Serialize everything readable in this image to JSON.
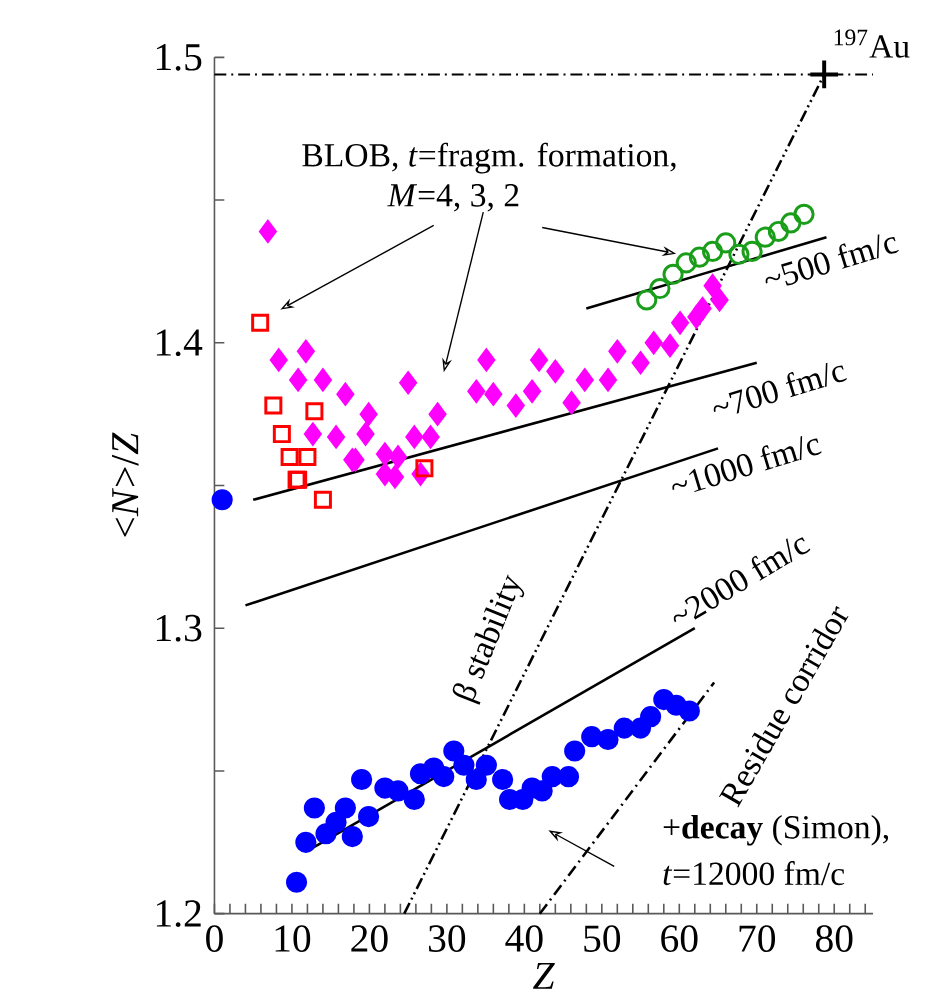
{
  "chart_data": {
    "type": "scatter",
    "xlabel": "*Z*",
    "ylabel": "<*N*>/*Z*",
    "xlim": [
      0,
      85
    ],
    "ylim": [
      1.2,
      1.5
    ],
    "xticks": [
      0,
      {
        "value": 2,
        "label": null
      },
      {
        "value": 4,
        "label": null
      },
      {
        "value": 6,
        "label": null
      },
      {
        "value": 8,
        "label": null
      },
      10,
      {
        "value": 12,
        "label": null
      },
      {
        "value": 14,
        "label": null
      },
      {
        "value": 16,
        "label": null
      },
      {
        "value": 18,
        "label": null
      },
      20,
      {
        "value": 22,
        "label": null
      },
      {
        "value": 24,
        "label": null
      },
      {
        "value": 26,
        "label": null
      },
      {
        "value": 28,
        "label": null
      },
      30,
      {
        "value": 32,
        "label": null
      },
      {
        "value": 34,
        "label": null
      },
      {
        "value": 36,
        "label": null
      },
      {
        "value": 38,
        "label": null
      },
      40,
      {
        "value": 42,
        "label": null
      },
      {
        "value": 44,
        "label": null
      },
      {
        "value": 46,
        "label": null
      },
      {
        "value": 48,
        "label": null
      },
      50,
      {
        "value": 52,
        "label": null
      },
      {
        "value": 54,
        "label": null
      },
      {
        "value": 56,
        "label": null
      },
      {
        "value": 58,
        "label": null
      },
      60,
      {
        "value": 62,
        "label": null
      },
      {
        "value": 64,
        "label": null
      },
      {
        "value": 66,
        "label": null
      },
      {
        "value": 68,
        "label": null
      },
      70,
      {
        "value": 72,
        "label": null
      },
      {
        "value": 74,
        "label": null
      },
      {
        "value": 76,
        "label": null
      },
      {
        "value": 78,
        "label": null
      },
      80,
      {
        "value": 82,
        "label": null
      },
      {
        "value": 84,
        "label": null
      }
    ],
    "yticks": [
      1.2,
      {
        "value": 1.25,
        "label": null
      },
      1.3,
      {
        "value": 1.35,
        "label": null
      },
      1.4,
      {
        "value": 1.45,
        "label": null
      },
      1.5
    ],
    "grid": false,
    "ref_lines": [
      {
        "axis": "y",
        "value": 1.494,
        "color": "#000000",
        "line_style": "dashdotted"
      }
    ],
    "series": [
      {
        "type": "line",
        "color": "#000000",
        "line_style": "solid",
        "x": [
          48,
          79
        ],
        "values": [
          1.412,
          1.437
        ]
      },
      {
        "type": "line",
        "color": "#000000",
        "line_style": "solid",
        "x": [
          5,
          70
        ],
        "values": [
          1.345,
          1.393
        ]
      },
      {
        "type": "line",
        "color": "#000000",
        "line_style": "solid",
        "x": [
          4,
          65
        ],
        "values": [
          1.308,
          1.363
        ]
      },
      {
        "type": "line",
        "color": "#000000",
        "line_style": "solid",
        "x": [
          12,
          62
        ],
        "values": [
          1.222,
          1.3
        ]
      },
      {
        "type": "line",
        "color": "#000000",
        "line_style": "dashdotdotted",
        "x": [
          24.5,
          78.7
        ],
        "values": [
          1.2,
          1.494
        ]
      },
      {
        "type": "line",
        "color": "#000000",
        "line_style": "dashdotted",
        "x": [
          42,
          64.5
        ],
        "values": [
          1.2,
          1.281
        ]
      },
      {
        "marker": "circle",
        "color": "#0000ff",
        "x": [
          1,
          10.6,
          11.8,
          12.9,
          14.4,
          15.7,
          16.9,
          17.8,
          19,
          19.9,
          22,
          23.7,
          25.8,
          26.6,
          28.3,
          29.6,
          30.9,
          32.2,
          33.8,
          35.1,
          37.2,
          38.1,
          39.8,
          41,
          42.3,
          43.6,
          45.7,
          46.5,
          48.7,
          50.8,
          52.9,
          55,
          56.3,
          58,
          59.6,
          61.3
        ],
        "values": [
          1.345,
          1.211,
          1.225,
          1.237,
          1.228,
          1.232,
          1.237,
          1.227,
          1.247,
          1.234,
          1.244,
          1.243,
          1.24,
          1.249,
          1.251,
          1.248,
          1.257,
          1.252,
          1.247,
          1.252,
          1.247,
          1.24,
          1.24,
          1.244,
          1.243,
          1.248,
          1.248,
          1.257,
          1.262,
          1.261,
          1.265,
          1.265,
          1.269,
          1.275,
          1.273,
          1.271
        ]
      },
      {
        "marker": "diamond",
        "color": "#ff00ff",
        "x": [
          6.9,
          8.3,
          11.8,
          10.8,
          14,
          16.9,
          12.7,
          15.7,
          19.9,
          19.5,
          18.2,
          22,
          25,
          25.8,
          23.3,
          17.8,
          22,
          23.7,
          26.6,
          28.8,
          27.9,
          35.1,
          33.8,
          36,
          38.9,
          41,
          41.9,
          44,
          46.1,
          47.8,
          50.8,
          52,
          55,
          56.7,
          58.8,
          60.1,
          62.2,
          64.3,
          65.2,
          63
        ],
        "values": [
          1.439,
          1.394,
          1.397,
          1.387,
          1.387,
          1.382,
          1.368,
          1.367,
          1.375,
          1.368,
          1.359,
          1.361,
          1.386,
          1.367,
          1.353,
          1.359,
          1.354,
          1.36,
          1.354,
          1.375,
          1.367,
          1.394,
          1.383,
          1.382,
          1.378,
          1.383,
          1.394,
          1.39,
          1.379,
          1.387,
          1.387,
          1.397,
          1.393,
          1.4,
          1.399,
          1.407,
          1.409,
          1.42,
          1.415,
          1.412
        ]
      },
      {
        "marker": "square-open",
        "color": "#ff0000",
        "x": [
          5.9,
          7.6,
          12.9,
          8.7,
          9.7,
          12,
          10.8,
          10.6,
          14,
          27.1
        ],
        "values": [
          1.407,
          1.378,
          1.376,
          1.368,
          1.36,
          1.36,
          1.352,
          1.352,
          1.345,
          1.356
        ]
      },
      {
        "marker": "circle-open",
        "color": "#1a9e1a",
        "x": [
          55.8,
          57.5,
          59.2,
          60.9,
          62.6,
          64.3,
          66,
          67.7,
          69.4,
          71.1,
          72.8,
          74.4,
          76.1
        ],
        "values": [
          1.415,
          1.419,
          1.424,
          1.428,
          1.43,
          1.432,
          1.435,
          1.431,
          1.432,
          1.437,
          1.439,
          1.442,
          1.445
        ]
      },
      {
        "marker": "cross",
        "color": "#000000",
        "x": [
          78.7
        ],
        "values": [
          1.494
        ]
      }
    ],
    "annotations": [
      "$^{197}$Au",
      "BLOB, *t*=fragm. formation,",
      "*M*=4, 3, 2",
      "~500 fm/c",
      "~700 fm/c",
      "~1000 fm/c",
      "~2000 fm/c",
      "β stability",
      "Residue corridor",
      "+**decay** (Simon),",
      "*t*=12000 fm/c"
    ]
  }
}
